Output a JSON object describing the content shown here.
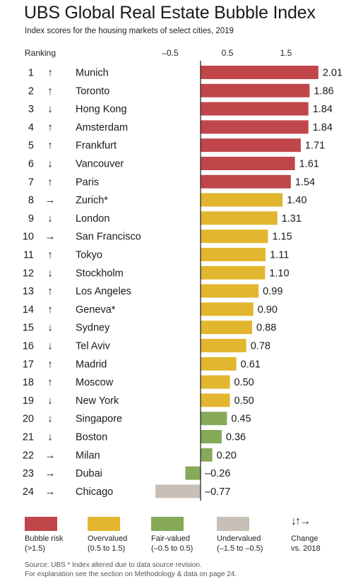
{
  "title": "UBS Global Real Estate Bubble Index",
  "subtitle": "Index scores for the housing markets of select cities, 2019",
  "ranking_label": "Ranking",
  "colors": {
    "bubble_risk": "#c0464a",
    "overvalued": "#e2b62e",
    "fair_valued": "#86a95a",
    "undervalued": "#c8bfb6"
  },
  "chart_data": {
    "type": "bar",
    "orientation": "horizontal",
    "title": "UBS Global Real Estate Bubble Index",
    "subtitle": "Index scores for the housing markets of select cities, 2019",
    "x_ticks": [
      "–0.5",
      "0.5",
      "1.5"
    ],
    "xlim": [
      -1.0,
      2.1
    ],
    "rows": [
      {
        "rank": "1",
        "change": "up",
        "city": "Munich",
        "value": 2.01,
        "value_label": "2.01",
        "category": "bubble_risk"
      },
      {
        "rank": "2",
        "change": "up",
        "city": "Toronto",
        "value": 1.86,
        "value_label": "1.86",
        "category": "bubble_risk"
      },
      {
        "rank": "3",
        "change": "down",
        "city": "Hong Kong",
        "value": 1.84,
        "value_label": "1.84",
        "category": "bubble_risk"
      },
      {
        "rank": "4",
        "change": "up",
        "city": "Amsterdam",
        "value": 1.84,
        "value_label": "1.84",
        "category": "bubble_risk"
      },
      {
        "rank": "5",
        "change": "up",
        "city": "Frankfurt",
        "value": 1.71,
        "value_label": "1.71",
        "category": "bubble_risk"
      },
      {
        "rank": "6",
        "change": "down",
        "city": "Vancouver",
        "value": 1.61,
        "value_label": "1.61",
        "category": "bubble_risk"
      },
      {
        "rank": "7",
        "change": "up",
        "city": "Paris",
        "value": 1.54,
        "value_label": "1.54",
        "category": "bubble_risk"
      },
      {
        "rank": "8",
        "change": "right",
        "city": "Zurich*",
        "value": 1.4,
        "value_label": "1.40",
        "category": "overvalued"
      },
      {
        "rank": "9",
        "change": "down",
        "city": "London",
        "value": 1.31,
        "value_label": "1.31",
        "category": "overvalued"
      },
      {
        "rank": "10",
        "change": "right",
        "city": "San Francisco",
        "value": 1.15,
        "value_label": "1.15",
        "category": "overvalued"
      },
      {
        "rank": "11",
        "change": "up",
        "city": "Tokyo",
        "value": 1.11,
        "value_label": "1.11",
        "category": "overvalued"
      },
      {
        "rank": "12",
        "change": "down",
        "city": "Stockholm",
        "value": 1.1,
        "value_label": "1.10",
        "category": "overvalued"
      },
      {
        "rank": "13",
        "change": "up",
        "city": "Los Angeles",
        "value": 0.99,
        "value_label": "0.99",
        "category": "overvalued"
      },
      {
        "rank": "14",
        "change": "up",
        "city": "Geneva*",
        "value": 0.9,
        "value_label": "0.90",
        "category": "overvalued"
      },
      {
        "rank": "15",
        "change": "down",
        "city": "Sydney",
        "value": 0.88,
        "value_label": "0.88",
        "category": "overvalued"
      },
      {
        "rank": "16",
        "change": "down",
        "city": "Tel Aviv",
        "value": 0.78,
        "value_label": "0.78",
        "category": "overvalued"
      },
      {
        "rank": "17",
        "change": "up",
        "city": "Madrid",
        "value": 0.61,
        "value_label": "0.61",
        "category": "overvalued"
      },
      {
        "rank": "18",
        "change": "up",
        "city": "Moscow",
        "value": 0.5,
        "value_label": "0.50",
        "category": "overvalued"
      },
      {
        "rank": "19",
        "change": "down",
        "city": "New York",
        "value": 0.5,
        "value_label": "0.50",
        "category": "overvalued"
      },
      {
        "rank": "20",
        "change": "down",
        "city": "Singapore",
        "value": 0.45,
        "value_label": "0.45",
        "category": "fair_valued"
      },
      {
        "rank": "21",
        "change": "down",
        "city": "Boston",
        "value": 0.36,
        "value_label": "0.36",
        "category": "fair_valued"
      },
      {
        "rank": "22",
        "change": "right",
        "city": "Milan",
        "value": 0.2,
        "value_label": "0.20",
        "category": "fair_valued"
      },
      {
        "rank": "23",
        "change": "right",
        "city": "Dubai",
        "value": -0.26,
        "value_label": "–0.26",
        "category": "fair_valued"
      },
      {
        "rank": "24",
        "change": "right",
        "city": "Chicago",
        "value": -0.77,
        "value_label": "–0.77",
        "category": "undervalued"
      }
    ]
  },
  "legend": [
    {
      "key": "bubble_risk",
      "label": "Bubble risk",
      "range": "(>1.5)"
    },
    {
      "key": "overvalued",
      "label": "Overvalued",
      "range": "(0.5 to 1.5)"
    },
    {
      "key": "fair_valued",
      "label": "Fair-valued",
      "range": "(–0.5 to 0.5)"
    },
    {
      "key": "undervalued",
      "label": "Undervalued",
      "range": "(–1.5 to –0.5)"
    }
  ],
  "change_legend": {
    "arrows": "↓↑→",
    "label": "Change",
    "sub": "vs. 2018"
  },
  "footer": {
    "line1": "Source: UBS  * Index altered due to data source revision.",
    "line2": "For explanation see the section on Methodology & data on page 24."
  }
}
